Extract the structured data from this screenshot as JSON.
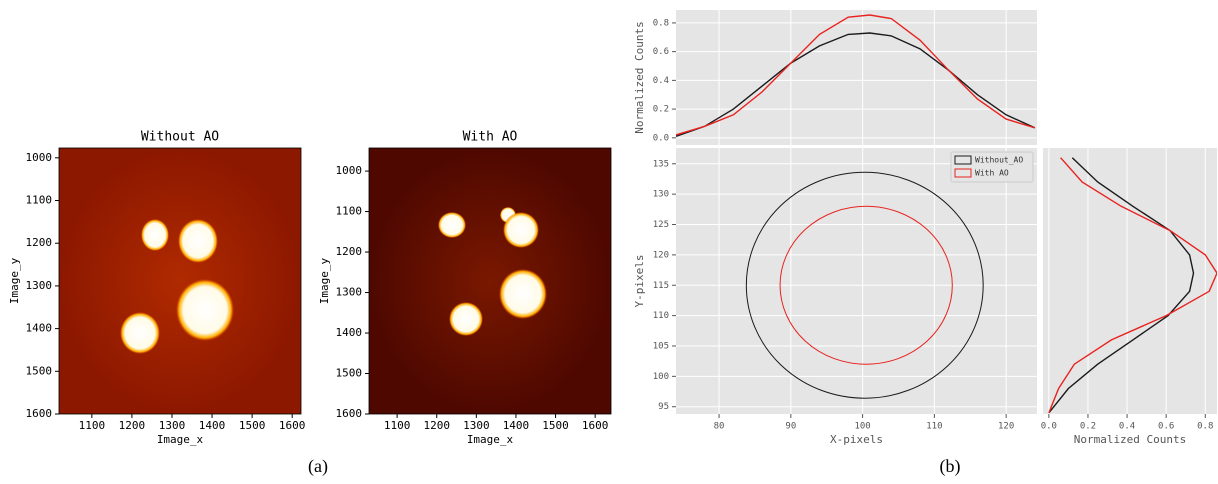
{
  "captions": [
    "(a)",
    "(b)"
  ],
  "chart_data": [
    {
      "type": "image",
      "title": "Without AO",
      "x_label": "Image_x",
      "y_label": "Image_y",
      "colormap": "hot",
      "xlim": [
        1018,
        1622
      ],
      "xticks": [
        1100,
        1200,
        1300,
        1400,
        1500,
        1600
      ],
      "ylim": [
        1600,
        977
      ],
      "yticks": [
        1000,
        1100,
        1200,
        1300,
        1400,
        1500,
        1600
      ]
    },
    {
      "type": "image",
      "title": "With AO",
      "x_label": "Image_x",
      "y_label": "Image_y",
      "colormap": "hot",
      "xlim": [
        1029,
        1640
      ],
      "xticks": [
        1100,
        1200,
        1300,
        1400,
        1500,
        1600
      ],
      "ylim": [
        1600,
        943
      ],
      "yticks": [
        1000,
        1100,
        1200,
        1300,
        1400,
        1500,
        1600
      ]
    },
    {
      "type": "line",
      "y_label": "Normalized Counts",
      "grid": true,
      "x": [
        74,
        78,
        82,
        86,
        90,
        94,
        98,
        101,
        104,
        108,
        112,
        116,
        120,
        124
      ],
      "series": [
        {
          "name": "Without_AO",
          "color": "#1a1a1a",
          "values": [
            0.01,
            0.08,
            0.2,
            0.36,
            0.52,
            0.64,
            0.72,
            0.73,
            0.71,
            0.62,
            0.47,
            0.3,
            0.16,
            0.07
          ]
        },
        {
          "name": "With AO",
          "color": "#e8231f",
          "values": [
            0.02,
            0.08,
            0.16,
            0.32,
            0.52,
            0.72,
            0.84,
            0.855,
            0.83,
            0.68,
            0.47,
            0.27,
            0.13,
            0.07
          ]
        }
      ],
      "xlim": [
        74,
        124.3
      ],
      "ylim": [
        -0.05,
        0.89
      ],
      "yticks": [
        {
          "value": 0,
          "label": "0.0"
        },
        0.2,
        0.4,
        0.6,
        0.8
      ]
    },
    {
      "type": "ellipse",
      "x_label": "X-pixels",
      "y_label": "Y-pixels",
      "grid": true,
      "legend": "upper right",
      "series": [
        {
          "name": "Without_AO",
          "color": "#1a1a1a",
          "center": [
            100.3,
            115
          ],
          "radii": [
            16.5,
            18.6
          ]
        },
        {
          "name": "With AO",
          "color": "#e8231f",
          "center": [
            100.5,
            115
          ],
          "radii": [
            12,
            13
          ]
        }
      ],
      "xlim": [
        74,
        124.3
      ],
      "xticks": [
        80,
        90,
        100,
        110,
        120
      ],
      "ylim": [
        93.8,
        137.6
      ],
      "yticks": [
        95,
        100,
        105,
        110,
        115,
        120,
        125,
        130,
        135
      ]
    },
    {
      "type": "line",
      "orientation": "horizontal",
      "x_label": "Normalized Counts",
      "grid": true,
      "y": [
        94,
        98,
        102,
        106,
        110,
        114,
        117,
        120,
        124,
        128,
        132,
        136
      ],
      "series": [
        {
          "name": "Without_AO",
          "color": "#1a1a1a",
          "values": [
            0.0,
            0.1,
            0.25,
            0.43,
            0.61,
            0.72,
            0.74,
            0.72,
            0.62,
            0.43,
            0.25,
            0.12
          ]
        },
        {
          "name": "With AO",
          "color": "#e8231f",
          "values": [
            0.0,
            0.05,
            0.13,
            0.32,
            0.6,
            0.82,
            0.86,
            0.8,
            0.62,
            0.37,
            0.17,
            0.06
          ]
        }
      ],
      "xlim": [
        -0.03,
        0.86
      ],
      "xticks": [
        {
          "value": 0,
          "label": "0.0"
        },
        0.2,
        0.4,
        0.6,
        0.8
      ],
      "ylim": [
        93.8,
        137.6
      ]
    }
  ]
}
